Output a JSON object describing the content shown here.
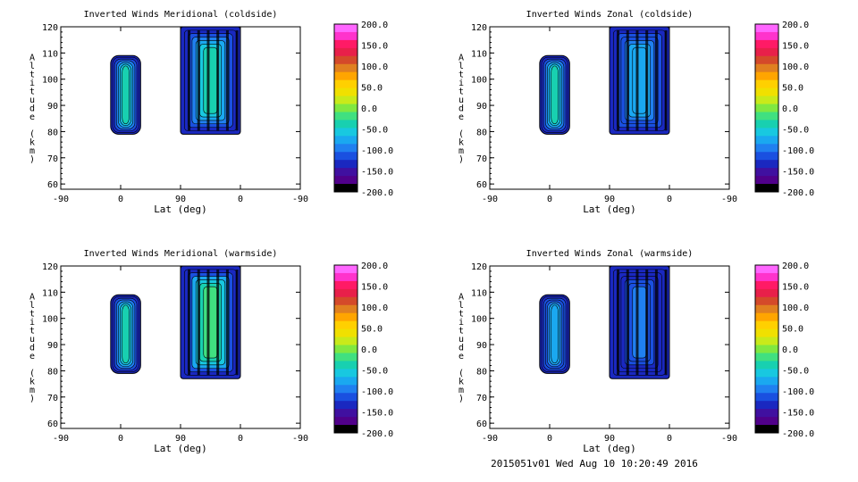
{
  "footer": "2015051v01 Wed Aug 10 10:20:49 2016",
  "colorbar": {
    "tick_labels": [
      "200.0",
      "150.0",
      "100.0",
      "50.0",
      "0.0",
      "-50.0",
      "-100.0",
      "-150.0",
      "-200.0"
    ],
    "range": [
      -200,
      200
    ],
    "colors": [
      "#ff66ff",
      "#ff33cc",
      "#ff1a66",
      "#e8204a",
      "#d44a2a",
      "#e08020",
      "#ffa500",
      "#ffd000",
      "#f0e000",
      "#c8ea1a",
      "#80e840",
      "#40e080",
      "#18d0b0",
      "#18c8e0",
      "#1aa8f0",
      "#2080f0",
      "#1a50e0",
      "#1a28c0",
      "#4010a0",
      "#50008a",
      "#000000"
    ]
  },
  "chart_data": [
    {
      "type": "heatmap",
      "title": "Inverted Winds Meridional (coldside)",
      "xlabel": "Lat (deg)",
      "ylabel": "Altitude (km)",
      "x_tick_labels": [
        "-90",
        "0",
        "90",
        "0",
        "-90"
      ],
      "y_ticks": [
        60,
        70,
        80,
        90,
        100,
        110,
        120
      ],
      "ylim": [
        58,
        120
      ],
      "data_regions": [
        {
          "x_range": [
            -15,
            30
          ],
          "alt_range": [
            79,
            109
          ],
          "mean_value": -40
        },
        {
          "x_range": [
            90,
            180
          ],
          "alt_range": [
            79,
            120
          ],
          "mean_value": -45
        }
      ]
    },
    {
      "type": "heatmap",
      "title": "Inverted Winds Zonal (coldside)",
      "xlabel": "Lat (deg)",
      "ylabel": "Altitude (km)",
      "x_tick_labels": [
        "-90",
        "0",
        "90",
        "0",
        "-90"
      ],
      "y_ticks": [
        60,
        70,
        80,
        90,
        100,
        110,
        120
      ],
      "ylim": [
        58,
        120
      ],
      "data_regions": [
        {
          "x_range": [
            -15,
            30
          ],
          "alt_range": [
            79,
            109
          ],
          "mean_value": -30
        },
        {
          "x_range": [
            90,
            180
          ],
          "alt_range": [
            79,
            120
          ],
          "mean_value": -70
        }
      ]
    },
    {
      "type": "heatmap",
      "title": "Inverted Winds Meridional (warmside)",
      "xlabel": "Lat (deg)",
      "ylabel": "Altitude (km)",
      "x_tick_labels": [
        "-90",
        "0",
        "90",
        "0",
        "-90"
      ],
      "y_ticks": [
        60,
        70,
        80,
        90,
        100,
        110,
        120
      ],
      "ylim": [
        58,
        120
      ],
      "data_regions": [
        {
          "x_range": [
            -15,
            30
          ],
          "alt_range": [
            79,
            109
          ],
          "mean_value": -40
        },
        {
          "x_range": [
            90,
            180
          ],
          "alt_range": [
            77,
            120
          ],
          "mean_value": -20
        }
      ]
    },
    {
      "type": "heatmap",
      "title": "Inverted Winds Zonal (warmside)",
      "xlabel": "Lat (deg)",
      "ylabel": "Altitude (km)",
      "x_tick_labels": [
        "-90",
        "0",
        "90",
        "0",
        "-90"
      ],
      "y_ticks": [
        60,
        70,
        80,
        90,
        100,
        110,
        120
      ],
      "ylim": [
        58,
        120
      ],
      "data_regions": [
        {
          "x_range": [
            -15,
            30
          ],
          "alt_range": [
            79,
            109
          ],
          "mean_value": -70
        },
        {
          "x_range": [
            90,
            180
          ],
          "alt_range": [
            77,
            120
          ],
          "mean_value": -100
        }
      ]
    }
  ]
}
